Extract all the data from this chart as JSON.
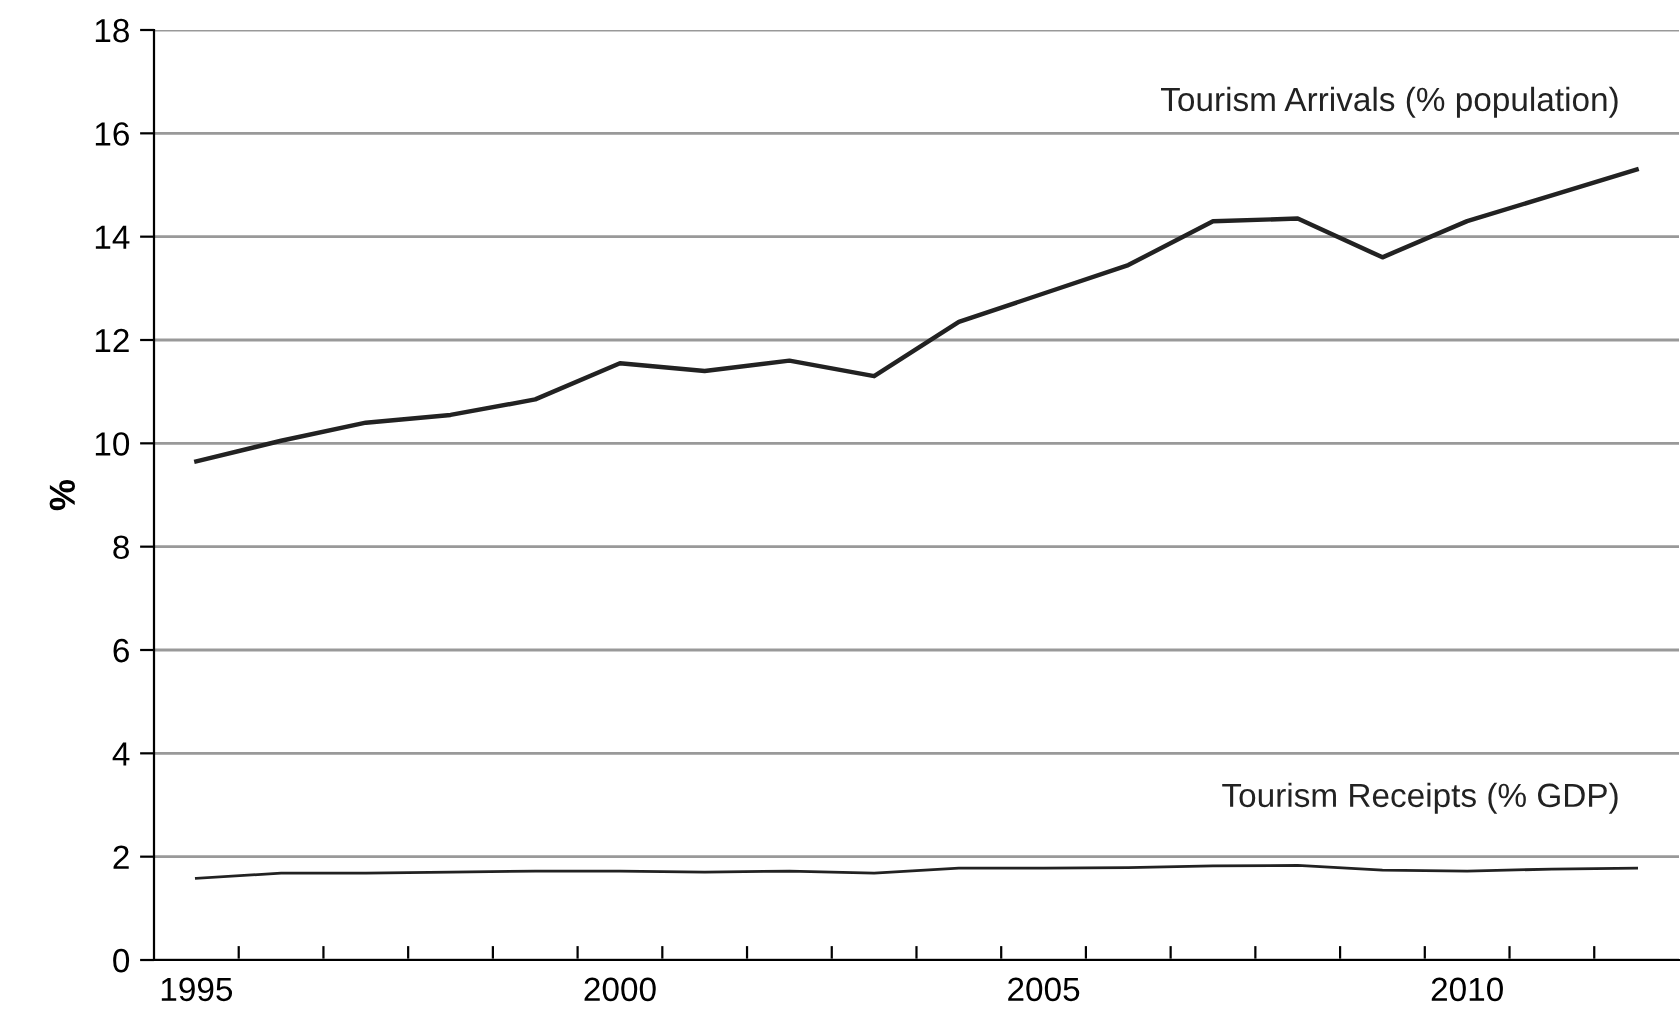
{
  "chart_data": {
    "type": "line",
    "ylabel": "%",
    "categories": [
      "1995",
      null,
      null,
      null,
      null,
      "2000",
      null,
      null,
      null,
      null,
      "2005",
      null,
      null,
      null,
      null,
      "2010",
      null,
      null
    ],
    "series": [
      {
        "name": "Tourism Arrivals (% population)",
        "color": "#222222",
        "values": [
          9.65,
          10.05,
          10.4,
          10.55,
          10.85,
          11.55,
          11.4,
          11.6,
          11.3,
          12.35,
          12.9,
          13.45,
          14.3,
          14.35,
          13.6,
          14.3,
          14.8,
          15.3
        ]
      },
      {
        "name": "Tourism Receipts (% GDP)",
        "color": "#222222",
        "values": [
          1.58,
          1.68,
          1.68,
          1.7,
          1.72,
          1.72,
          1.7,
          1.72,
          1.68,
          1.78,
          1.78,
          1.79,
          1.82,
          1.83,
          1.74,
          1.72,
          1.76,
          1.78
        ]
      }
    ],
    "ylim": [
      0,
      18
    ],
    "yticks": [
      0,
      2,
      4,
      6,
      8,
      10,
      12,
      14,
      16,
      18
    ],
    "grid": "y",
    "legend": false,
    "marker": "none",
    "line_style": "solid"
  }
}
